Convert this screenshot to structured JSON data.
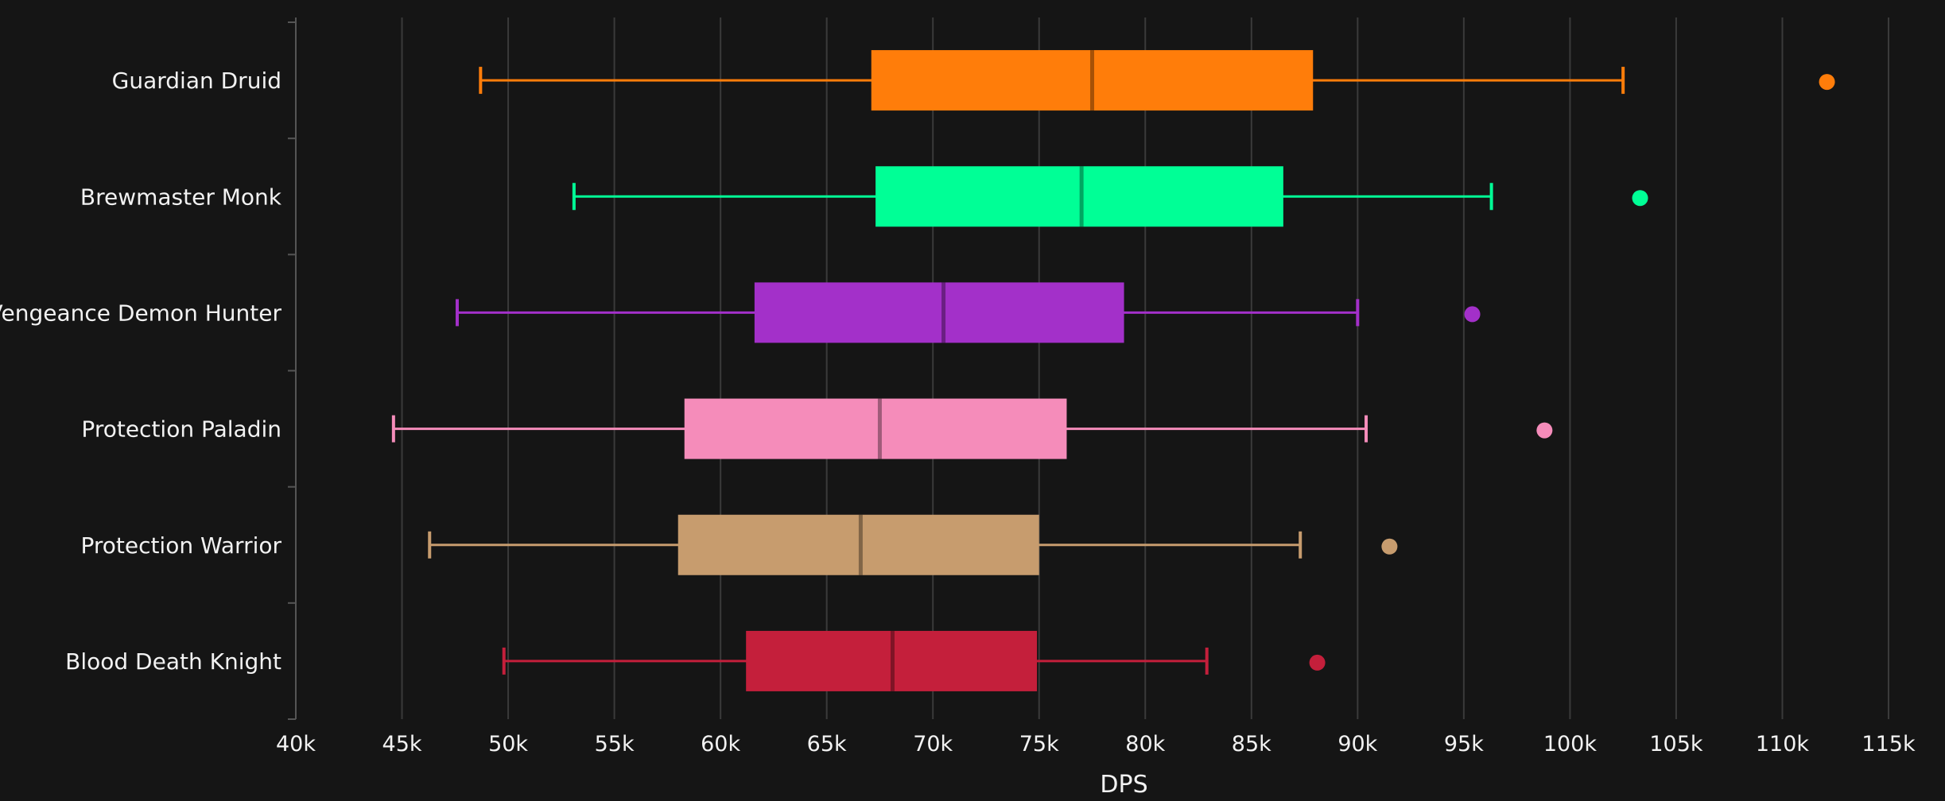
{
  "chart_data": {
    "type": "boxplot",
    "orientation": "horizontal",
    "title": "",
    "xlabel": "DPS",
    "ylabel": "",
    "xlim": [
      40000,
      115000
    ],
    "grid": true,
    "x_ticks": [
      {
        "value": 40000,
        "label": "40k"
      },
      {
        "value": 45000,
        "label": "45k"
      },
      {
        "value": 50000,
        "label": "50k"
      },
      {
        "value": 55000,
        "label": "55k"
      },
      {
        "value": 60000,
        "label": "60k"
      },
      {
        "value": 65000,
        "label": "65k"
      },
      {
        "value": 70000,
        "label": "70k"
      },
      {
        "value": 75000,
        "label": "75k"
      },
      {
        "value": 80000,
        "label": "80k"
      },
      {
        "value": 85000,
        "label": "85k"
      },
      {
        "value": 90000,
        "label": "90k"
      },
      {
        "value": 95000,
        "label": "95k"
      },
      {
        "value": 100000,
        "label": "100k"
      },
      {
        "value": 105000,
        "label": "105k"
      },
      {
        "value": 110000,
        "label": "110k"
      },
      {
        "value": 115000,
        "label": "115k"
      }
    ],
    "series": [
      {
        "name": "Guardian Druid",
        "color": "#ff7d0a",
        "whisker_low": 48700,
        "q1": 67100,
        "median": 77500,
        "q3": 87900,
        "whisker_high": 102500,
        "outliers": [
          112100
        ]
      },
      {
        "name": "Brewmaster Monk",
        "color": "#00ff96",
        "whisker_low": 53100,
        "q1": 67300,
        "median": 77000,
        "q3": 86500,
        "whisker_high": 96300,
        "outliers": [
          103300
        ]
      },
      {
        "name": "Vengeance Demon Hunter",
        "color": "#a330c9",
        "whisker_low": 47600,
        "q1": 61600,
        "median": 70500,
        "q3": 79000,
        "whisker_high": 90000,
        "outliers": [
          95400
        ]
      },
      {
        "name": "Protection Paladin",
        "color": "#f58cba",
        "whisker_low": 44600,
        "q1": 58300,
        "median": 67500,
        "q3": 76300,
        "whisker_high": 90400,
        "outliers": [
          98800
        ]
      },
      {
        "name": "Protection Warrior",
        "color": "#c79c6e",
        "whisker_low": 46300,
        "q1": 58000,
        "median": 66600,
        "q3": 75000,
        "whisker_high": 87300,
        "outliers": [
          91500
        ]
      },
      {
        "name": "Blood Death Knight",
        "color": "#c41f3b",
        "whisker_low": 49800,
        "q1": 61200,
        "median": 68100,
        "q3": 74900,
        "whisker_high": 82900,
        "outliers": [
          88100
        ]
      }
    ]
  }
}
